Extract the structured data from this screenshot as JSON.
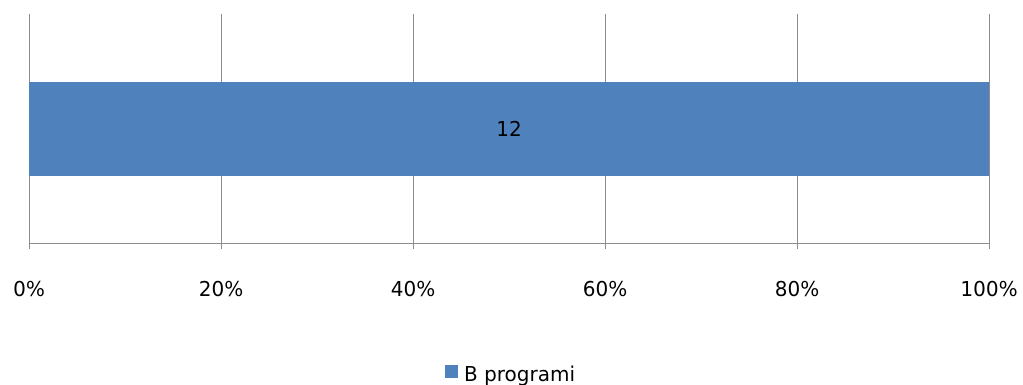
{
  "chart_data": {
    "type": "bar",
    "orientation": "horizontal",
    "stacked": "percent",
    "categories": [
      ""
    ],
    "series": [
      {
        "name": "B programi",
        "values": [
          12
        ],
        "percent": [
          100
        ],
        "color": "#4F81BD"
      }
    ],
    "data_labels": [
      "12"
    ],
    "xlim": [
      0,
      100
    ],
    "x_ticks": [
      0,
      20,
      40,
      60,
      80,
      100
    ],
    "x_tick_labels": [
      "0%",
      "20%",
      "40%",
      "60%",
      "80%",
      "100%"
    ],
    "grid": "vertical",
    "legend": {
      "position": "bottom",
      "entries": [
        "B programi"
      ]
    },
    "title": "",
    "xlabel": "",
    "ylabel": ""
  }
}
